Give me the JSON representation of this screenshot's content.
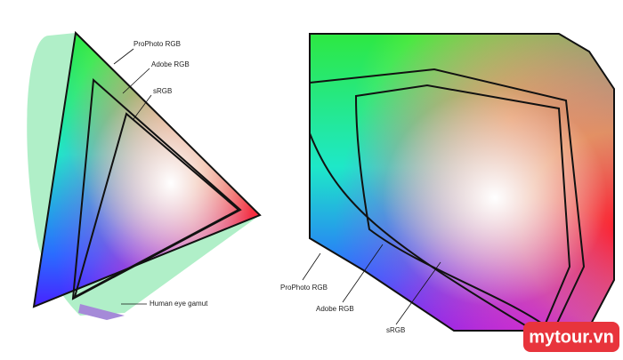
{
  "left_diagram": {
    "labels": [
      "ProPhoto RGB",
      "Adobe RGB",
      "sRGB",
      "Human eye gamut"
    ]
  },
  "right_diagram": {
    "labels": [
      "ProPhoto RGB",
      "Adobe RGB",
      "sRGB"
    ]
  },
  "watermark": "mytour.vn"
}
